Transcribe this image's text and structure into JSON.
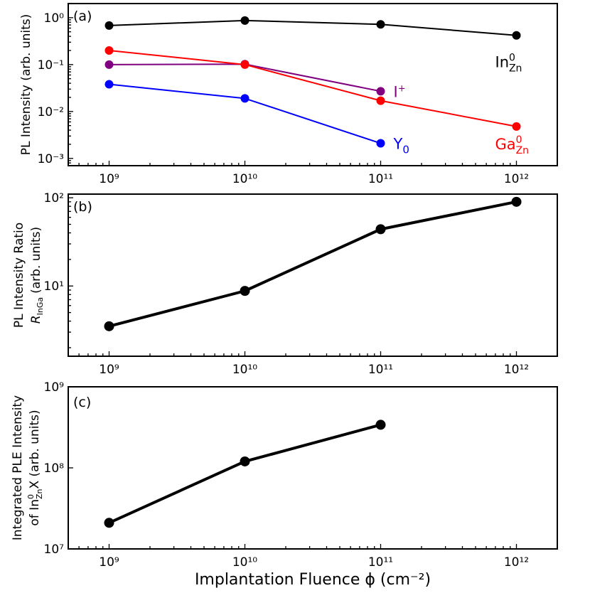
{
  "chart_data": [
    {
      "panel": "(a)",
      "type": "line",
      "yscale": "log",
      "xscale": "log",
      "xlim": [
        500000000,
        2000000000000
      ],
      "ylim": [
        0.0007,
        2
      ],
      "ytick_labels": [
        "10⁰",
        "10⁻¹",
        "10⁻²",
        "10⁻³"
      ],
      "ylabel": "PL Intensity (arb. units)",
      "series": [
        {
          "name": "In⁰Zn",
          "label_main": "In",
          "label_sup": "0",
          "label_sub": "Zn",
          "color": "#000000",
          "x": [
            1000000000.0,
            10000000000.0,
            100000000000.0,
            1000000000000.0
          ],
          "y": [
            0.68,
            0.87,
            0.72,
            0.42
          ]
        },
        {
          "name": "I⁺",
          "label_main": "I",
          "label_sup": "+",
          "label_sub": "",
          "color": "#800080",
          "x": [
            1000000000.0,
            10000000000.0,
            100000000000.0
          ],
          "y": [
            0.1,
            0.102,
            0.027
          ]
        },
        {
          "name": "Ga⁰Zn",
          "label_main": "Ga",
          "label_sup": "0",
          "label_sub": "Zn",
          "color": "#ff0000",
          "x": [
            1000000000.0,
            10000000000.0,
            100000000000.0,
            1000000000000.0
          ],
          "y": [
            0.2,
            0.1,
            0.017,
            0.0048
          ]
        },
        {
          "name": "Y₀",
          "label_main": "Y",
          "label_sup": "",
          "label_sub": "0",
          "color": "#0000ff",
          "x": [
            1000000000.0,
            10000000000.0,
            100000000000.0
          ],
          "y": [
            0.038,
            0.019,
            0.0021
          ]
        }
      ]
    },
    {
      "panel": "(b)",
      "type": "line",
      "yscale": "log",
      "xscale": "log",
      "xlim": [
        500000000,
        2000000000000
      ],
      "ylim": [
        1.6,
        110
      ],
      "ytick_labels": [
        "10²",
        "10¹"
      ],
      "ylabel": "PL Intensity Ratio",
      "ylabel_line2_main": "R",
      "ylabel_line2_sub": "InGa",
      "ylabel_line2_units": "(arb. units)",
      "series": [
        {
          "color": "#000000",
          "x": [
            1000000000.0,
            10000000000.0,
            100000000000.0,
            1000000000000.0
          ],
          "y": [
            3.5,
            8.8,
            44,
            90
          ]
        }
      ]
    },
    {
      "panel": "(c)",
      "type": "line",
      "yscale": "log",
      "xscale": "log",
      "xlim": [
        500000000,
        2000000000000
      ],
      "ylim": [
        10000000,
        1000000000
      ],
      "ytick_labels": [
        "10⁹",
        "10⁸",
        "10⁷"
      ],
      "ylabel": "Integrated PLE Intensity",
      "ylabel_line2_pre": "of In",
      "ylabel_line2_sup": "0",
      "ylabel_line2_sub": "Zn",
      "ylabel_line2_post": "X (arb. units)",
      "series": [
        {
          "color": "#000000",
          "x": [
            1000000000.0,
            10000000000.0,
            100000000000.0
          ],
          "y": [
            21000000,
            120000000,
            340000000
          ]
        }
      ]
    }
  ],
  "x_tick_labels": [
    "10⁹",
    "10¹⁰",
    "10¹¹",
    "10¹²"
  ],
  "xlabel": "Implantation Fluence ϕ (cm⁻²)"
}
